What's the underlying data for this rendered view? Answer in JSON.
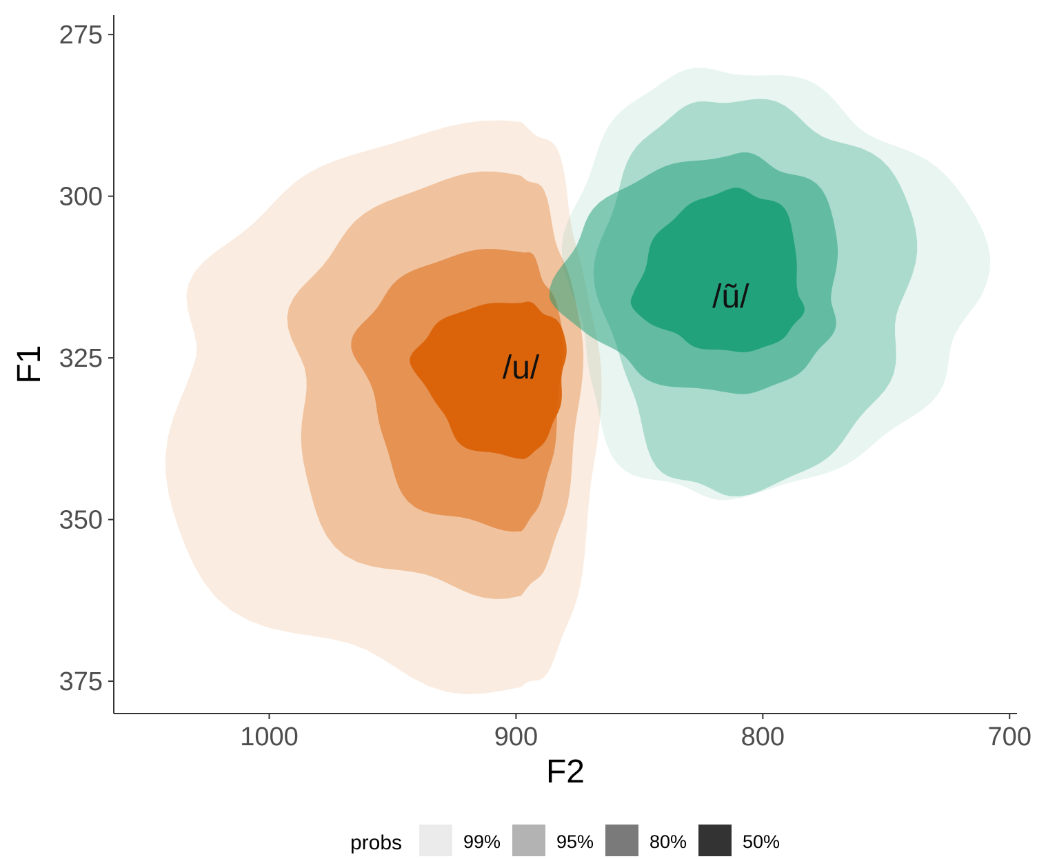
{
  "chart_data": {
    "type": "contour",
    "xlabel": "F2",
    "ylabel": "F1",
    "x_reversed": true,
    "y_reversed": true,
    "xlim": [
      1063,
      697
    ],
    "ylim": [
      272,
      380
    ],
    "x_ticks": [
      1000,
      900,
      800,
      700
    ],
    "y_ticks": [
      275,
      300,
      325,
      350,
      375
    ],
    "grid": false,
    "legend": {
      "title": "probs",
      "position": "bottom",
      "entries": [
        {
          "label": "99%",
          "shade": "#ebebeb"
        },
        {
          "label": "95%",
          "shade": "#b3b3b3"
        },
        {
          "label": "80%",
          "shade": "#7a7a7a"
        },
        {
          "label": "50%",
          "shade": "#333333"
        }
      ]
    },
    "series": [
      {
        "name": "/u/",
        "color": "#d95f02",
        "center": {
          "x": 898,
          "y": 326.5
        },
        "levels": [
          {
            "prob": "99%",
            "opacity": 0.12,
            "x_extent": [
              1043,
              868
            ],
            "y_extent": [
              290,
              378
            ]
          },
          {
            "prob": "95%",
            "opacity": 0.3,
            "x_extent": [
              995,
              875
            ],
            "y_extent": [
              297,
              362
            ]
          },
          {
            "prob": "80%",
            "opacity": 0.48,
            "x_extent": [
              965,
              882
            ],
            "y_extent": [
              308,
              351
            ]
          },
          {
            "prob": "50%",
            "opacity": 0.9,
            "x_extent": [
              940,
              880
            ],
            "y_extent": [
              316,
              340
            ]
          }
        ]
      },
      {
        "name": "/ũ/",
        "color": "#1b9e77",
        "center": {
          "x": 813,
          "y": 315.5
        },
        "levels": [
          {
            "prob": "99%",
            "opacity": 0.1,
            "x_extent": [
              880,
              716
            ],
            "y_extent": [
              280,
              346
            ]
          },
          {
            "prob": "95%",
            "opacity": 0.3,
            "x_extent": [
              865,
              740
            ],
            "y_extent": [
              284,
              345
            ]
          },
          {
            "prob": "80%",
            "opacity": 0.5,
            "x_extent": [
              880,
              768
            ],
            "y_extent": [
              293,
              330
            ]
          },
          {
            "prob": "50%",
            "opacity": 0.9,
            "x_extent": [
              850,
              783
            ],
            "y_extent": [
              299,
              324
            ]
          }
        ]
      }
    ]
  }
}
